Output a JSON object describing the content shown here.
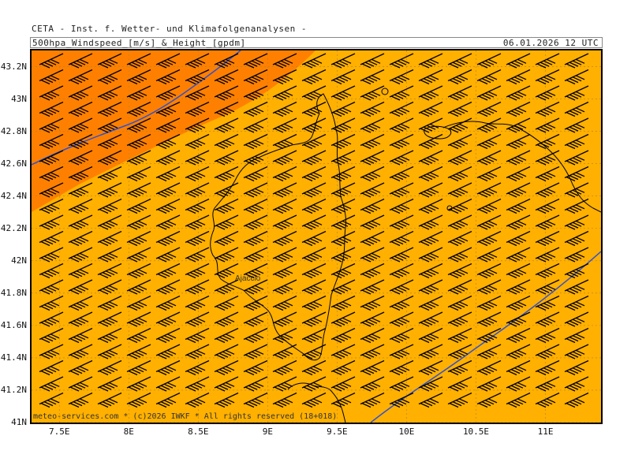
{
  "header": {
    "institute": "CETA - Inst. f. Wetter- und Klimafolgenanalysen -",
    "product": "500hpa_Windspeed_[m/s]_&_Height_[gpdm]",
    "valid_time": "06.01.2026 12 UTC"
  },
  "map": {
    "lon_range": [
      7.3,
      11.4
    ],
    "lat_range": [
      41.0,
      43.3
    ],
    "lat_labels": [
      "41N",
      "41.2N",
      "41.4N",
      "41.6N",
      "41.8N",
      "42N",
      "42.2N",
      "42.4N",
      "42.6N",
      "42.8N",
      "43N",
      "43.2N"
    ],
    "lat_values": [
      41.0,
      41.2,
      41.4,
      41.6,
      41.8,
      42.0,
      42.2,
      42.4,
      42.6,
      42.8,
      43.0,
      43.2
    ],
    "lon_labels": [
      "7.5E",
      "8E",
      "8.5E",
      "9E",
      "9.5E",
      "10E",
      "10.5E",
      "11E"
    ],
    "lon_values": [
      7.5,
      8.0,
      8.5,
      9.0,
      9.5,
      10.0,
      10.5,
      11.0
    ],
    "place_label": "Ajaccio",
    "colors": {
      "background_fill": "#ffb000",
      "high_speed_fill": "#ff8000",
      "contour": "#3050d0",
      "coast": "#000000",
      "grid": "#b08030"
    },
    "wind_barb_icon": "wind-barb-icon"
  },
  "footer": {
    "copyright": "meteo-services.com * (c)2026 IWKF * All rights reserved (18+018)"
  }
}
